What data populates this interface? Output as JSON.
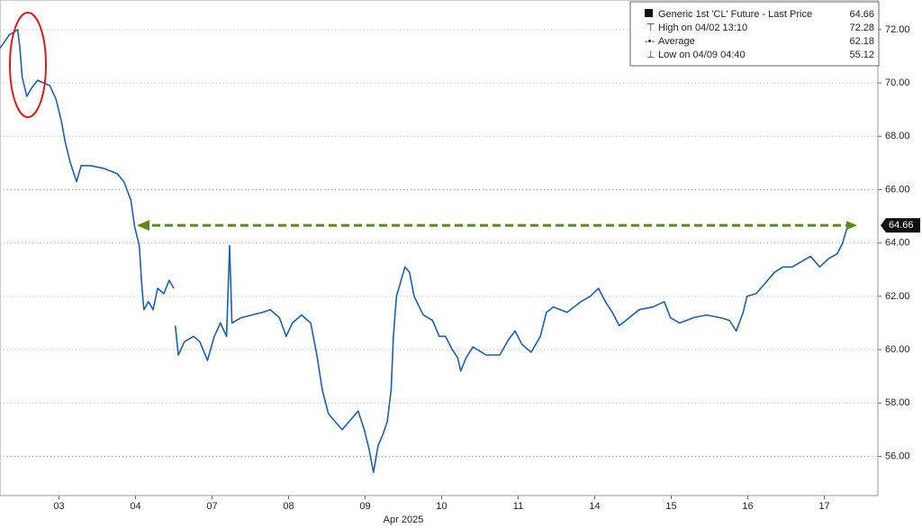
{
  "chart_data": {
    "type": "line",
    "x_label": "Apr 2025",
    "xlim": [
      -0.27,
      11.2
    ],
    "ylim": [
      54.53,
      73.11
    ],
    "xticks": [
      {
        "value": 0.5,
        "label": "03"
      },
      {
        "value": 1.5,
        "label": "04"
      },
      {
        "value": 2.5,
        "label": "07"
      },
      {
        "value": 3.5,
        "label": "08"
      },
      {
        "value": 4.5,
        "label": "09"
      },
      {
        "value": 5.5,
        "label": "10"
      },
      {
        "value": 6.5,
        "label": "11"
      },
      {
        "value": 7.5,
        "label": "14"
      },
      {
        "value": 8.5,
        "label": "15"
      },
      {
        "value": 9.5,
        "label": "16"
      },
      {
        "value": 10.5,
        "label": "17"
      }
    ],
    "yticks": [
      {
        "value": 56,
        "label": "56.00"
      },
      {
        "value": 58,
        "label": "58.00"
      },
      {
        "value": 60,
        "label": "60.00"
      },
      {
        "value": 62,
        "label": "62.00"
      },
      {
        "value": 64,
        "label": "64.00"
      },
      {
        "value": 66,
        "label": "66.00"
      },
      {
        "value": 68,
        "label": "68.00"
      },
      {
        "value": 70,
        "label": "70.00"
      },
      {
        "value": 72,
        "label": "72.00"
      }
    ],
    "grid": true,
    "legend": {
      "series_name": "Generic 1st 'CL' Future - Last Price",
      "last": 64.66,
      "high_label": "High on 04/02 13:10",
      "high": 72.28,
      "average_label": "Average",
      "average": 62.18,
      "low_label": "Low on 04/09 04:40",
      "low": 55.12
    },
    "last_value": 64.66,
    "series": [
      {
        "name": "Generic 1st 'CL' Future - Last Price",
        "color": "#1f5fa8",
        "x": [
          -0.27,
          -0.15,
          -0.04,
          -0.01,
          0.02,
          0.08,
          0.14,
          0.22,
          0.38,
          0.46,
          0.53,
          0.58,
          0.65,
          0.73,
          0.79,
          0.91,
          1.08,
          1.26,
          1.35,
          1.44,
          1.49,
          1.55,
          1.58,
          1.61,
          1.67,
          1.73,
          1.79,
          1.87,
          1.94,
          2.0,
          2.01,
          2.02,
          2.06,
          2.14,
          2.26,
          2.34,
          2.44,
          2.53,
          2.61,
          2.69,
          2.73,
          2.76,
          2.88,
          3.02,
          3.16,
          3.26,
          3.38,
          3.47,
          3.55,
          3.67,
          3.79,
          3.87,
          3.94,
          4.02,
          4.11,
          4.2,
          4.32,
          4.41,
          4.49,
          4.55,
          4.61,
          4.67,
          4.73,
          4.79,
          4.84,
          4.87,
          4.91,
          4.96,
          5.02,
          5.08,
          5.14,
          5.26,
          5.38,
          5.47,
          5.55,
          5.64,
          5.71,
          5.75,
          5.82,
          5.91,
          6.08,
          6.26,
          6.38,
          6.46,
          6.55,
          6.67,
          6.79,
          6.87,
          6.96,
          7.14,
          7.32,
          7.44,
          7.55,
          7.64,
          7.73,
          7.82,
          7.91,
          8.08,
          8.26,
          8.41,
          8.49,
          8.61,
          8.79,
          8.96,
          9.14,
          9.26,
          9.35,
          9.44,
          9.49,
          9.61,
          9.73,
          9.85,
          9.96,
          10.08,
          10.2,
          10.32,
          10.44,
          10.55,
          10.67,
          10.74,
          10.79,
          10.86
        ],
        "values": [
          71.3,
          71.8,
          72.0,
          71.3,
          70.2,
          69.5,
          69.8,
          70.1,
          69.9,
          69.4,
          68.6,
          67.8,
          67.0,
          66.3,
          66.9,
          66.9,
          66.8,
          66.6,
          66.3,
          65.6,
          64.6,
          63.9,
          62.5,
          61.5,
          61.8,
          61.5,
          62.3,
          62.1,
          62.6,
          62.3,
          null,
          60.9,
          59.8,
          60.3,
          60.5,
          60.3,
          59.6,
          60.5,
          61.0,
          60.5,
          63.9,
          61.0,
          61.2,
          61.3,
          61.4,
          61.5,
          61.2,
          60.5,
          61.0,
          61.3,
          61.0,
          59.8,
          58.5,
          57.6,
          57.3,
          57.0,
          57.4,
          57.7,
          57.0,
          56.3,
          55.4,
          56.4,
          56.8,
          57.3,
          58.5,
          60.5,
          62.0,
          62.5,
          63.1,
          62.9,
          62.0,
          61.3,
          61.1,
          60.5,
          60.5,
          60.0,
          59.7,
          59.2,
          59.7,
          60.1,
          59.8,
          59.8,
          60.4,
          60.7,
          60.2,
          59.9,
          60.5,
          61.4,
          61.6,
          61.4,
          61.8,
          62.0,
          62.3,
          61.8,
          61.4,
          60.9,
          61.1,
          61.5,
          61.6,
          61.8,
          61.2,
          61.0,
          61.2,
          61.3,
          61.2,
          61.1,
          60.7,
          61.4,
          62.0,
          62.1,
          62.5,
          62.9,
          63.1,
          63.1,
          63.3,
          63.5,
          63.1,
          63.4,
          63.6,
          64.0,
          64.5,
          64.66
        ]
      }
    ]
  }
}
